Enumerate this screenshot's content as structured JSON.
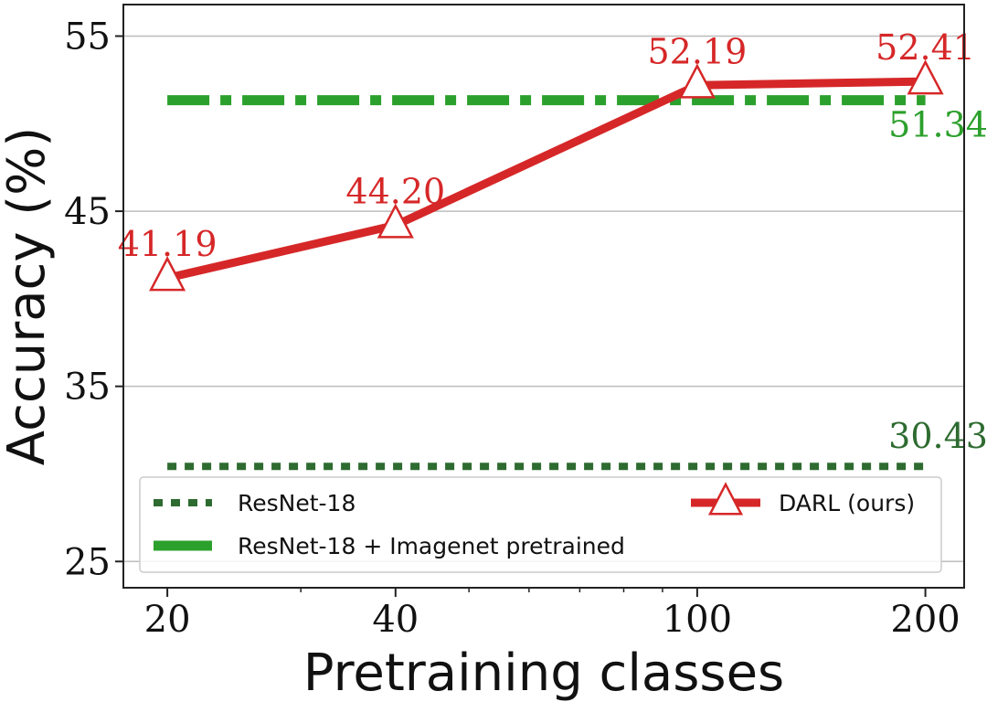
{
  "chart_data": {
    "type": "line",
    "title": "",
    "xlabel": "Pretraining classes",
    "ylabel": "Accuracy (%)",
    "x_scale": "log",
    "x_ticks": [
      {
        "value": 20,
        "label": "20"
      },
      {
        "value": 40,
        "label": "40"
      },
      {
        "value": 100,
        "label": "100"
      },
      {
        "value": 200,
        "label": "200"
      }
    ],
    "y_ticks": [
      {
        "value": 25,
        "label": "25"
      },
      {
        "value": 35,
        "label": "35"
      },
      {
        "value": 45,
        "label": "45"
      },
      {
        "value": 55,
        "label": "55"
      }
    ],
    "xlim": [
      17.5,
      225
    ],
    "ylim": [
      23.5,
      56.8
    ],
    "grid": "horizontal",
    "legend_placement": "lower",
    "series": [
      {
        "name": "ResNet-18",
        "style": "dotted",
        "color": "#2e6b30",
        "x": [
          20,
          200
        ],
        "y": [
          30.43,
          30.43
        ],
        "end_label": "30.43"
      },
      {
        "name": "ResNet-18 + Imagenet pretrained",
        "style": "dashdot",
        "color": "#2ca02c",
        "x": [
          20,
          200
        ],
        "y": [
          51.34,
          51.34
        ],
        "end_label": "51.34"
      },
      {
        "name": "DARL (ours)",
        "style": "solid",
        "marker": "triangle",
        "color": "#d62728",
        "x": [
          20,
          40,
          100,
          200
        ],
        "y": [
          41.19,
          44.2,
          52.19,
          52.41
        ],
        "labels": [
          "41.19",
          "44.20",
          "52.19",
          "52.41"
        ]
      }
    ]
  }
}
